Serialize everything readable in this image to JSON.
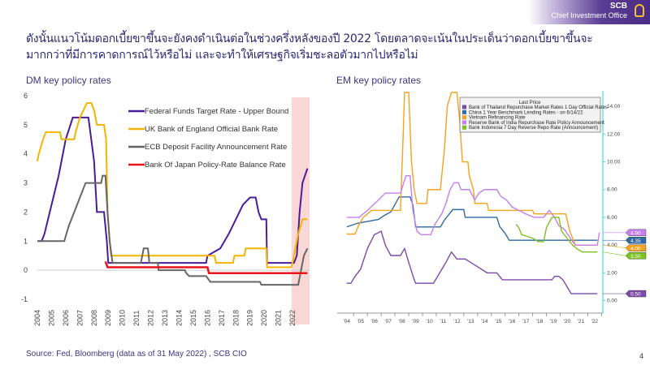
{
  "logo": {
    "brand": "SCB",
    "subtitle": "Chief Investment Office"
  },
  "title": "ดังนั้นแนวโน้มดอกเบี้ยขาขึ้นจะยังคงดำเนินต่อในช่วงครึ่งหลังของปี 2022 โดยตลาดจะเน้นในประเด็นว่าดอกเบี้ยขาขึ้นจะมากกว่าที่มีการคาดการณ์ไว้หรือไม่ และจะทำให้เศรษฐกิจเริ่มชะลอตัวมากไปหรือไม่",
  "source": "Source: Fed, Bloomberg (data as of 31 May 2022) , SCB CIO",
  "page_number": "4",
  "chart_data": [
    {
      "type": "line",
      "title": "DM key policy rates",
      "xlim": [
        2004,
        2023.2
      ],
      "ylim": [
        -1,
        6
      ],
      "yticks": [
        "-1",
        "0",
        "1",
        "2",
        "3",
        "4",
        "5",
        "6"
      ],
      "xticks": [
        "2004",
        "2005",
        "2006",
        "2007",
        "2008",
        "2009",
        "2010",
        "2011",
        "2012",
        "2013",
        "2014",
        "2015",
        "2016",
        "2017",
        "2018",
        "2019",
        "2020",
        "2021",
        "2022"
      ],
      "highlight_from": 2022,
      "highlight_color": "#f8d7d7",
      "legend_position": "top-right",
      "series": [
        {
          "name": "Federal Funds Target Rate - Upper Bound",
          "color": "#4b1c9a",
          "points": [
            [
              2004,
              1
            ],
            [
              2004.3,
              1
            ],
            [
              2004.5,
              1.25
            ],
            [
              2005,
              2.25
            ],
            [
              2005.5,
              3.25
            ],
            [
              2006,
              4.5
            ],
            [
              2006.5,
              5.25
            ],
            [
              2007.6,
              5.25
            ],
            [
              2007.8,
              4.5
            ],
            [
              2008,
              3.75
            ],
            [
              2008.2,
              2
            ],
            [
              2008.7,
              2
            ],
            [
              2008.9,
              1
            ],
            [
              2009,
              0.25
            ],
            [
              2015.9,
              0.25
            ],
            [
              2016,
              0.5
            ],
            [
              2016.9,
              0.75
            ],
            [
              2017.5,
              1.25
            ],
            [
              2018,
              1.75
            ],
            [
              2018.5,
              2.25
            ],
            [
              2019,
              2.5
            ],
            [
              2019.4,
              2.5
            ],
            [
              2019.6,
              2
            ],
            [
              2019.8,
              1.75
            ],
            [
              2020.15,
              1.75
            ],
            [
              2020.2,
              0.25
            ],
            [
              2022.1,
              0.25
            ],
            [
              2022.3,
              0.5
            ],
            [
              2022.5,
              2
            ],
            [
              2022.7,
              3
            ],
            [
              2023.05,
              3.5
            ]
          ]
        },
        {
          "name": "UK Bank of England Official Bank Rate",
          "color": "#f5b400",
          "points": [
            [
              2004,
              3.75
            ],
            [
              2004.1,
              4
            ],
            [
              2004.4,
              4.5
            ],
            [
              2004.6,
              4.75
            ],
            [
              2005.6,
              4.75
            ],
            [
              2005.7,
              4.5
            ],
            [
              2006.6,
              4.5
            ],
            [
              2006.7,
              4.75
            ],
            [
              2007,
              5.25
            ],
            [
              2007.5,
              5.75
            ],
            [
              2007.8,
              5.75
            ],
            [
              2008,
              5.5
            ],
            [
              2008.2,
              5
            ],
            [
              2008.7,
              5
            ],
            [
              2008.85,
              4.5
            ],
            [
              2008.95,
              2
            ],
            [
              2009.1,
              1
            ],
            [
              2009.2,
              0.5
            ],
            [
              2016.5,
              0.5
            ],
            [
              2016.6,
              0.25
            ],
            [
              2017.8,
              0.25
            ],
            [
              2017.9,
              0.5
            ],
            [
              2018.6,
              0.5
            ],
            [
              2018.7,
              0.75
            ],
            [
              2020.15,
              0.75
            ],
            [
              2020.2,
              0.1
            ],
            [
              2021.9,
              0.1
            ],
            [
              2022,
              0.25
            ],
            [
              2022.2,
              0.75
            ],
            [
              2022.4,
              1.25
            ],
            [
              2022.7,
              1.75
            ],
            [
              2023.05,
              1.75
            ]
          ]
        },
        {
          "name": "ECB Deposit Facility Announcement Rate",
          "color": "#666666",
          "points": [
            [
              2004,
              1
            ],
            [
              2005.9,
              1
            ],
            [
              2006.2,
              1.5
            ],
            [
              2006.6,
              2
            ],
            [
              2007,
              2.5
            ],
            [
              2007.4,
              3
            ],
            [
              2008.5,
              3
            ],
            [
              2008.6,
              3.25
            ],
            [
              2008.8,
              3.25
            ],
            [
              2008.95,
              2
            ],
            [
              2009.1,
              1
            ],
            [
              2009.3,
              0.25
            ],
            [
              2011.3,
              0.25
            ],
            [
              2011.4,
              0.5
            ],
            [
              2011.5,
              0.75
            ],
            [
              2011.8,
              0.75
            ],
            [
              2011.9,
              0.25
            ],
            [
              2012.5,
              0.25
            ],
            [
              2012.55,
              0
            ],
            [
              2014.4,
              0
            ],
            [
              2014.5,
              -0.1
            ],
            [
              2014.7,
              -0.2
            ],
            [
              2015.9,
              -0.2
            ],
            [
              2016.2,
              -0.4
            ],
            [
              2019.7,
              -0.4
            ],
            [
              2019.8,
              -0.5
            ],
            [
              2022.4,
              -0.5
            ],
            [
              2022.6,
              0
            ],
            [
              2022.8,
              0.5
            ],
            [
              2023.05,
              0.75
            ]
          ]
        },
        {
          "name": "Bank Of Japan Policy-Rate Balance Rate",
          "color": "#e8141b",
          "points": [
            [
              2008.8,
              0.3
            ],
            [
              2008.95,
              0.1
            ],
            [
              2016,
              0.1
            ],
            [
              2016.1,
              -0.1
            ],
            [
              2023.05,
              -0.1
            ]
          ]
        }
      ]
    },
    {
      "type": "line",
      "title": "EM key policy rates",
      "xlim": [
        2003.6,
        2022.6
      ],
      "ylim": [
        -0.9,
        15
      ],
      "yticks": [
        "0.00",
        "2.00",
        "4.00",
        "6.00",
        "8.00",
        "10.00",
        "12.00",
        "14.00"
      ],
      "xticks": [
        "'04",
        "'05",
        "'06",
        "'07",
        "'08",
        "'09",
        "'10",
        "'11",
        "'12",
        "'13",
        "'14",
        "'15",
        "'16",
        "'17",
        "'18",
        "'19",
        "'20",
        "'21",
        "'22"
      ],
      "legend_title": "Last Price",
      "legend_position": "top-right",
      "series": [
        {
          "name": "Bank of Thailand Repurchase Market Rates 1 Day Official Rates",
          "color": "#7b4aa8",
          "last": "0.50",
          "points": [
            [
              2004,
              1.25
            ],
            [
              2004.3,
              1.25
            ],
            [
              2004.6,
              1.75
            ],
            [
              2005,
              2.25
            ],
            [
              2005.5,
              3.75
            ],
            [
              2006,
              4.75
            ],
            [
              2006.5,
              5
            ],
            [
              2006.8,
              4
            ],
            [
              2007.2,
              3.25
            ],
            [
              2007.9,
              3.25
            ],
            [
              2008.2,
              3.75
            ],
            [
              2008.5,
              2.75
            ],
            [
              2008.9,
              1.5
            ],
            [
              2009,
              1.25
            ],
            [
              2010.3,
              1.25
            ],
            [
              2010.6,
              1.75
            ],
            [
              2011.2,
              2.75
            ],
            [
              2011.6,
              3.5
            ],
            [
              2012,
              3
            ],
            [
              2012.6,
              3
            ],
            [
              2013,
              2.75
            ],
            [
              2013.4,
              2.5
            ],
            [
              2013.8,
              2.25
            ],
            [
              2014.2,
              2
            ],
            [
              2014.9,
              2
            ],
            [
              2015.3,
              1.5
            ],
            [
              2018.9,
              1.5
            ],
            [
              2019.1,
              1.75
            ],
            [
              2019.4,
              1.75
            ],
            [
              2019.7,
              1.5
            ],
            [
              2020,
              1
            ],
            [
              2020.3,
              0.5
            ],
            [
              2022.2,
              0.5
            ]
          ]
        },
        {
          "name": "China 1 Year Benchmark Lending Rates -  on 6/14/22",
          "color": "#2e6aa6",
          "last": "4.35",
          "points": [
            [
              2004,
              5.31
            ],
            [
              2004.8,
              5.58
            ],
            [
              2006.3,
              5.85
            ],
            [
              2006.7,
              6.12
            ],
            [
              2007.2,
              6.39
            ],
            [
              2007.5,
              6.93
            ],
            [
              2007.8,
              7.47
            ],
            [
              2008.6,
              7.47
            ],
            [
              2008.8,
              6.9
            ],
            [
              2009,
              5.31
            ],
            [
              2010.8,
              5.31
            ],
            [
              2011.1,
              5.81
            ],
            [
              2011.5,
              6.31
            ],
            [
              2011.7,
              6.56
            ],
            [
              2012.5,
              6.56
            ],
            [
              2012.6,
              6.0
            ],
            [
              2014.9,
              6.0
            ],
            [
              2015.1,
              5.35
            ],
            [
              2015.5,
              4.85
            ],
            [
              2015.8,
              4.35
            ],
            [
              2022.2,
              4.35
            ]
          ]
        },
        {
          "name": "Vietnam Refinancing Rate",
          "color": "#f5a21e",
          "last": "4.00",
          "points": [
            [
              2004,
              4.8
            ],
            [
              2004.6,
              4.8
            ],
            [
              2004.9,
              5.5
            ],
            [
              2005.2,
              6
            ],
            [
              2005.8,
              6.5
            ],
            [
              2007.9,
              6.5
            ],
            [
              2008.1,
              12
            ],
            [
              2008.2,
              15
            ],
            [
              2008.5,
              15
            ],
            [
              2008.7,
              10
            ],
            [
              2008.9,
              8
            ],
            [
              2009.1,
              7
            ],
            [
              2009.8,
              7
            ],
            [
              2009.9,
              8
            ],
            [
              2010.8,
              8
            ],
            [
              2010.9,
              9
            ],
            [
              2011.1,
              11
            ],
            [
              2011.3,
              14
            ],
            [
              2011.6,
              15
            ],
            [
              2012,
              15
            ],
            [
              2012.2,
              13
            ],
            [
              2012.4,
              10
            ],
            [
              2012.8,
              10
            ],
            [
              2012.9,
              9
            ],
            [
              2013.2,
              8
            ],
            [
              2013.3,
              7
            ],
            [
              2014.2,
              7
            ],
            [
              2014.3,
              6.5
            ],
            [
              2017.5,
              6.5
            ],
            [
              2017.6,
              6.25
            ],
            [
              2019.9,
              6.25
            ],
            [
              2020.2,
              5
            ],
            [
              2020.4,
              4.5
            ],
            [
              2020.6,
              4
            ],
            [
              2022.2,
              4
            ]
          ]
        },
        {
          "name": "Reserve Bank of India Repurchase Rate Policy Announcement",
          "color": "#c77ef0",
          "last": "4.90",
          "points": [
            [
              2004,
              6
            ],
            [
              2004.9,
              6
            ],
            [
              2005.5,
              6.5
            ],
            [
              2006.3,
              7.25
            ],
            [
              2006.8,
              7.75
            ],
            [
              2007.9,
              7.75
            ],
            [
              2008.3,
              9
            ],
            [
              2008.6,
              9
            ],
            [
              2008.8,
              6.5
            ],
            [
              2009.1,
              5
            ],
            [
              2009.4,
              4.75
            ],
            [
              2010.1,
              4.75
            ],
            [
              2010.4,
              5.5
            ],
            [
              2010.9,
              6.25
            ],
            [
              2011.2,
              7
            ],
            [
              2011.5,
              8
            ],
            [
              2011.8,
              8.5
            ],
            [
              2012.1,
              8.5
            ],
            [
              2012.3,
              8
            ],
            [
              2012.9,
              8
            ],
            [
              2013.3,
              7.25
            ],
            [
              2013.6,
              7.75
            ],
            [
              2014,
              8
            ],
            [
              2014.9,
              8
            ],
            [
              2015.2,
              7.5
            ],
            [
              2015.6,
              7.25
            ],
            [
              2016,
              6.75
            ],
            [
              2016.5,
              6.5
            ],
            [
              2017,
              6.25
            ],
            [
              2017.6,
              6
            ],
            [
              2018.3,
              6
            ],
            [
              2018.7,
              6.5
            ],
            [
              2019.1,
              6
            ],
            [
              2019.4,
              5.4
            ],
            [
              2019.8,
              5.15
            ],
            [
              2020.3,
              4.4
            ],
            [
              2020.6,
              4
            ],
            [
              2022.2,
              4
            ],
            [
              2022.35,
              4.9
            ]
          ]
        },
        {
          "name": "Bank Indonesia 7 Day Reverse Repo Rate (Announcement)",
          "color": "#7cc21e",
          "last": "3.50",
          "points": [
            [
              2016.3,
              5.5
            ],
            [
              2016.5,
              5.25
            ],
            [
              2016.7,
              4.75
            ],
            [
              2017.5,
              4.5
            ],
            [
              2017.9,
              4.25
            ],
            [
              2018.3,
              4.25
            ],
            [
              2018.5,
              5.25
            ],
            [
              2018.9,
              6
            ],
            [
              2019.4,
              6
            ],
            [
              2019.6,
              5
            ],
            [
              2020,
              4.5
            ],
            [
              2020.4,
              4
            ],
            [
              2020.7,
              3.75
            ],
            [
              2021.1,
              3.5
            ],
            [
              2022.2,
              3.5
            ]
          ]
        }
      ]
    }
  ]
}
